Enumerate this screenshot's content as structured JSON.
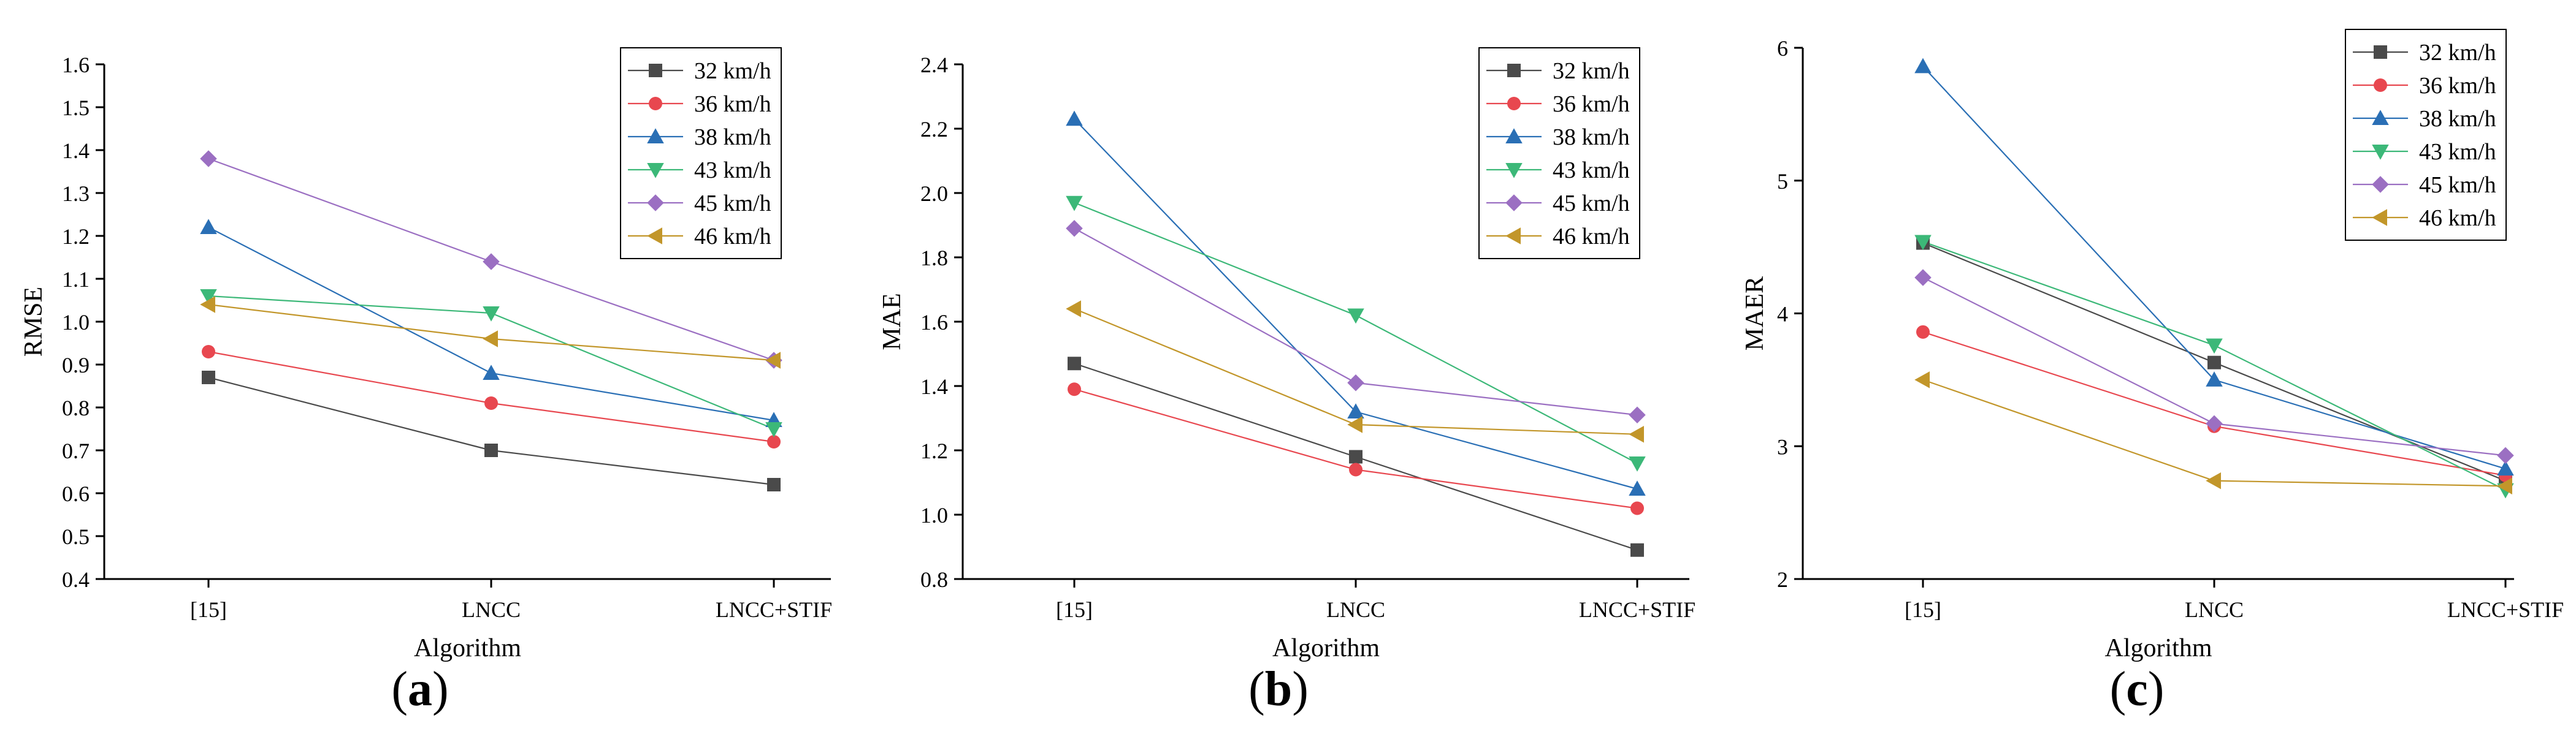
{
  "chart_data": [
    {
      "type": "line",
      "panel_label": "a",
      "title": "",
      "xlabel": "Algorithm",
      "ylabel": "RMSE",
      "categories": [
        "[15]",
        "LNCC",
        "LNCC+STIF"
      ],
      "ylim": [
        0.4,
        1.6
      ],
      "yticks": [
        "0.4",
        "0.5",
        "0.6",
        "0.7",
        "0.8",
        "0.9",
        "1.0",
        "1.1",
        "1.2",
        "1.3",
        "1.4",
        "1.5",
        "1.6"
      ],
      "grid": false,
      "legend_position": "top-right",
      "series": [
        {
          "name": "32 km/h",
          "values": [
            0.87,
            0.7,
            0.62
          ],
          "color": "#4a4a4a",
          "marker": "square"
        },
        {
          "name": "36 km/h",
          "values": [
            0.93,
            0.81,
            0.72
          ],
          "color": "#e8474f",
          "marker": "circle"
        },
        {
          "name": "38 km/h",
          "values": [
            1.22,
            0.88,
            0.77
          ],
          "color": "#2a6fb5",
          "marker": "triangle-up"
        },
        {
          "name": "43 km/h",
          "values": [
            1.06,
            1.02,
            0.75
          ],
          "color": "#3cb878",
          "marker": "triangle-down"
        },
        {
          "name": "45 km/h",
          "values": [
            1.38,
            1.14,
            0.91
          ],
          "color": "#9b6fc2",
          "marker": "diamond"
        },
        {
          "name": "46 km/h",
          "values": [
            1.04,
            0.96,
            0.91
          ],
          "color": "#c2962a",
          "marker": "triangle-left"
        }
      ]
    },
    {
      "type": "line",
      "panel_label": "b",
      "title": "",
      "xlabel": "Algorithm",
      "ylabel": "MAE",
      "categories": [
        "[15]",
        "LNCC",
        "LNCC+STIF"
      ],
      "ylim": [
        0.8,
        2.4
      ],
      "yticks": [
        "0.8",
        "1.0",
        "1.2",
        "1.4",
        "1.6",
        "1.8",
        "2.0",
        "2.2",
        "2.4"
      ],
      "grid": false,
      "legend_position": "top-right",
      "series": [
        {
          "name": "32 km/h",
          "values": [
            1.47,
            1.18,
            0.89
          ],
          "color": "#4a4a4a",
          "marker": "square"
        },
        {
          "name": "36 km/h",
          "values": [
            1.39,
            1.14,
            1.02
          ],
          "color": "#e8474f",
          "marker": "circle"
        },
        {
          "name": "38 km/h",
          "values": [
            2.23,
            1.32,
            1.08
          ],
          "color": "#2a6fb5",
          "marker": "triangle-up"
        },
        {
          "name": "43 km/h",
          "values": [
            1.97,
            1.62,
            1.16
          ],
          "color": "#3cb878",
          "marker": "triangle-down"
        },
        {
          "name": "45 km/h",
          "values": [
            1.89,
            1.41,
            1.31
          ],
          "color": "#9b6fc2",
          "marker": "diamond"
        },
        {
          "name": "46 km/h",
          "values": [
            1.64,
            1.28,
            1.25
          ],
          "color": "#c2962a",
          "marker": "triangle-left"
        }
      ]
    },
    {
      "type": "line",
      "panel_label": "c",
      "title": "",
      "xlabel": "Algorithm",
      "ylabel": "MAER",
      "categories": [
        "[15]",
        "LNCC",
        "LNCC+STIF"
      ],
      "ylim": [
        2,
        6
      ],
      "yticks": [
        "2",
        "3",
        "4",
        "5",
        "6"
      ],
      "grid": false,
      "legend_position": "top-right",
      "series": [
        {
          "name": "32 km/h",
          "values": [
            4.53,
            3.63,
            2.74
          ],
          "color": "#4a4a4a",
          "marker": "square"
        },
        {
          "name": "36 km/h",
          "values": [
            3.86,
            3.15,
            2.78
          ],
          "color": "#e8474f",
          "marker": "circle"
        },
        {
          "name": "38 km/h",
          "values": [
            5.86,
            3.5,
            2.83
          ],
          "color": "#2a6fb5",
          "marker": "triangle-up"
        },
        {
          "name": "43 km/h",
          "values": [
            4.54,
            3.76,
            2.67
          ],
          "color": "#3cb878",
          "marker": "triangle-down"
        },
        {
          "name": "45 km/h",
          "values": [
            4.27,
            3.17,
            2.93
          ],
          "color": "#9b6fc2",
          "marker": "diamond"
        },
        {
          "name": "46 km/h",
          "values": [
            3.5,
            2.74,
            2.7
          ],
          "color": "#c2962a",
          "marker": "triangle-left"
        }
      ]
    }
  ]
}
